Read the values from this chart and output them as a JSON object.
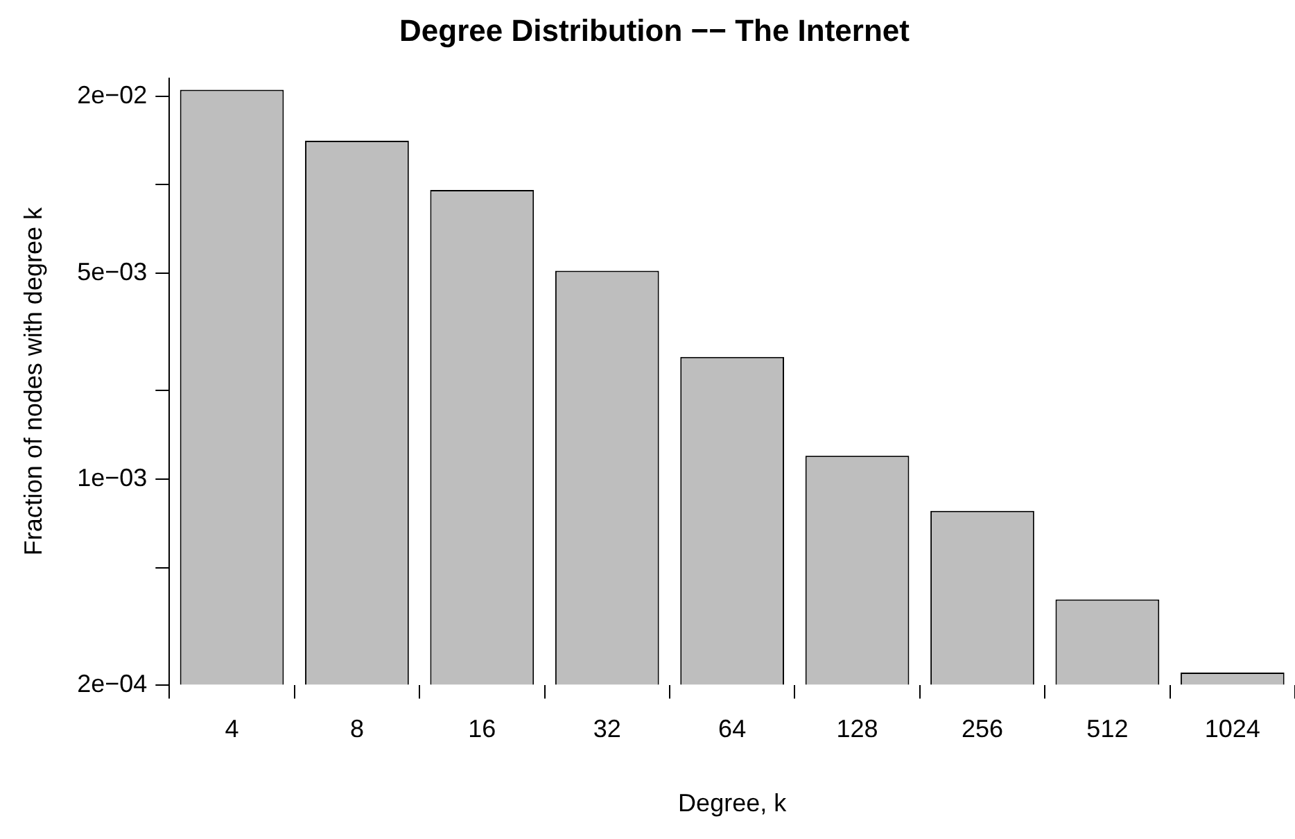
{
  "chart_data": {
    "type": "bar",
    "title": "Degree Distribution −− The Internet",
    "xlabel": "Degree, k",
    "ylabel": "Fraction of nodes with degree k",
    "categories": [
      "4",
      "8",
      "16",
      "32",
      "64",
      "128",
      "256",
      "512",
      "1024"
    ],
    "values": [
      0.021,
      0.0141,
      0.0096,
      0.0051,
      0.0026,
      0.0012,
      0.00078,
      0.00039,
      0.00022
    ],
    "color": "#bebebe",
    "log": "y",
    "ylim": [
      0.0002,
      0.023
    ],
    "yticks": [
      {
        "value": 0.0002,
        "label": "2e−04"
      },
      {
        "value": 0.0005,
        "label": null
      },
      {
        "value": 0.001,
        "label": "1e−03"
      },
      {
        "value": 0.002,
        "label": null
      },
      {
        "value": 0.005,
        "label": "5e−03"
      },
      {
        "value": 0.01,
        "label": null
      },
      {
        "value": 0.02,
        "label": "2e−02"
      }
    ],
    "grid": false
  }
}
